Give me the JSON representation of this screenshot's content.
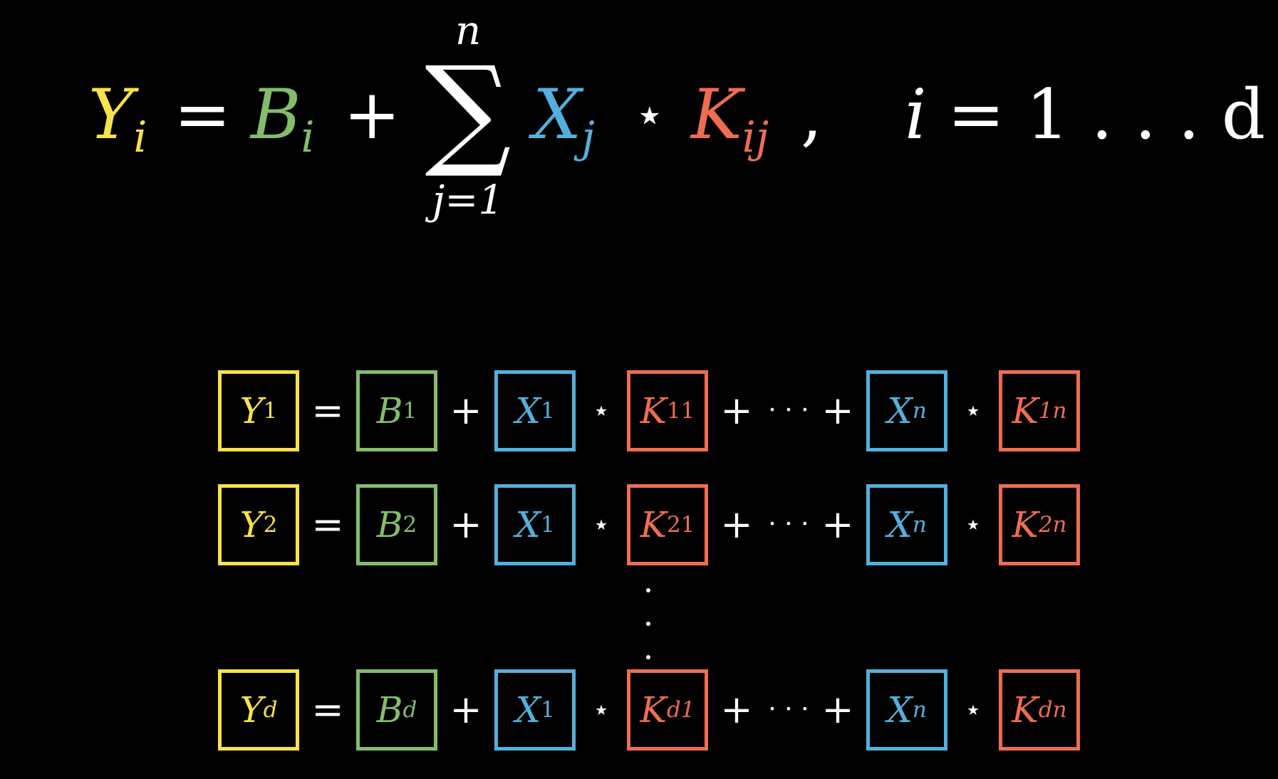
{
  "colors": {
    "background": "#000000",
    "y": "#f7e249",
    "b": "#83bd6b",
    "x": "#53b0dc",
    "k": "#ee6d51",
    "white": "#ffffff"
  },
  "formula": {
    "y": "Y",
    "y_sub": "i",
    "equals": "=",
    "b": "B",
    "b_sub": "i",
    "plus": "+",
    "sum_symbol": "∑",
    "sum_upper": "n",
    "sum_lower": "j=1",
    "x": "X",
    "x_sub": "j",
    "star": "⋆",
    "k": "K",
    "k_sub": "ij",
    "comma": ",",
    "range_var": "i",
    "range_equals": "=",
    "range_value": "1 . . . d"
  },
  "rows": [
    {
      "y": "Y",
      "y_sub": "1",
      "b": "B",
      "b_sub": "1",
      "x_first": "X",
      "x_first_sub": "1",
      "k_first": "K",
      "k_first_sub": "11",
      "x_last": "X",
      "x_last_sub": "n",
      "k_last": "K",
      "k_last_sub": "1n"
    },
    {
      "y": "Y",
      "y_sub": "2",
      "b": "B",
      "b_sub": "2",
      "x_first": "X",
      "x_first_sub": "1",
      "k_first": "K",
      "k_first_sub": "21",
      "x_last": "X",
      "x_last_sub": "n",
      "k_last": "K",
      "k_last_sub": "2n"
    },
    {
      "y": "Y",
      "y_sub": "d",
      "b": "B",
      "b_sub": "d",
      "x_first": "X",
      "x_first_sub": "1",
      "k_first": "K",
      "k_first_sub": "d1",
      "x_last": "X",
      "x_last_sub": "n",
      "k_last": "K",
      "k_last_sub": "dn"
    }
  ],
  "operators": {
    "equals": "=",
    "plus": "+",
    "star": "⋆",
    "cdots": "· · ·"
  }
}
